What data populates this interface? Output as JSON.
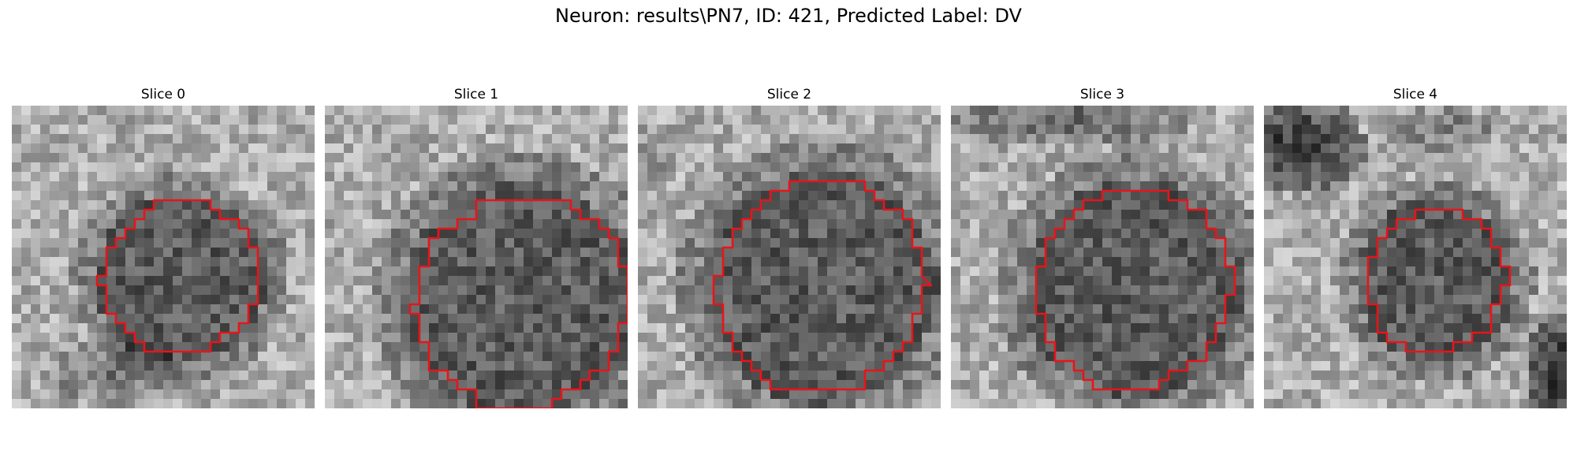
{
  "figure": {
    "title": "Neuron: results\\PN7, ID: 421, Predicted Label: DV"
  },
  "panels": [
    {
      "title": "Slice 0"
    },
    {
      "title": "Slice 1"
    },
    {
      "title": "Slice 2"
    },
    {
      "title": "Slice 3"
    },
    {
      "title": "Slice 4"
    }
  ],
  "colors": {
    "contour": "#e8141a",
    "background": "#ffffff"
  }
}
